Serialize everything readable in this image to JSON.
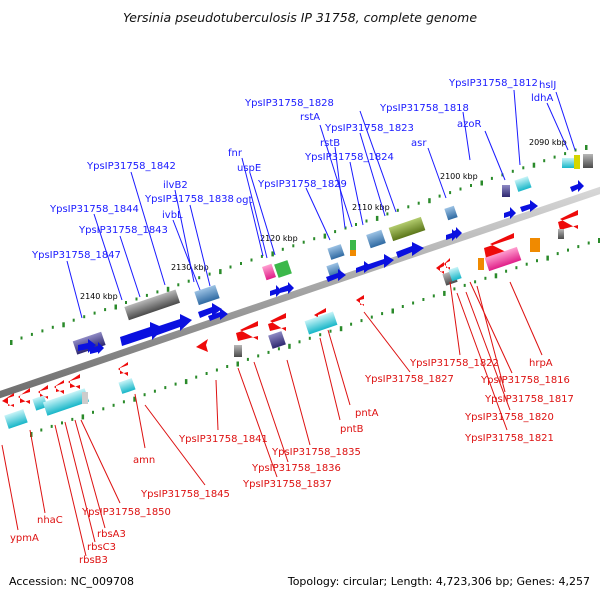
{
  "title": "Yersinia pseudotuberculosis IP 31758, complete genome",
  "footer": {
    "accession": "Accession: NC_009708",
    "topology": "Topology: circular; Length: 4,723,306 bp; Genes: 4,257"
  },
  "colors": {
    "forward_label": "#1a1aff",
    "reverse_label": "#dd1111",
    "backbone": "#8f8f8f",
    "tick": "#2a8a2a"
  },
  "kbp_ticks": [
    "2090 kbp",
    "2100 kbp",
    "2110 kbp",
    "2120 kbp",
    "2130 kbp",
    "2140 kbp"
  ],
  "forward_genes": [
    "YpsIP31758_1812",
    "hslJ",
    "ldhA",
    "YpsIP31758_1818",
    "azoR",
    "asr",
    "YpsIP31758_1828",
    "rstA",
    "rstB",
    "YpsIP31758_1823",
    "YpsIP31758_1824",
    "fnr",
    "uspE",
    "YpsIP31758_1829",
    "ogt",
    "YpsIP31758_1842",
    "ilvB2",
    "YpsIP31758_1838",
    "ivbL",
    "YpsIP31758_1844",
    "YpsIP31758_1843",
    "YpsIP31758_1847"
  ],
  "reverse_genes": [
    "YpsIP31758_1822",
    "hrpA",
    "YpsIP31758_1827",
    "YpsIP31758_1816",
    "YpsIP31758_1817",
    "YpsIP31758_1820",
    "YpsIP31758_1821",
    "pntA",
    "pntB",
    "YpsIP31758_1841",
    "YpsIP31758_1835",
    "YpsIP31758_1836",
    "YpsIP31758_1837",
    "amn",
    "YpsIP31758_1845",
    "YpsIP31758_1850",
    "nhaC",
    "rbsA3",
    "rbsC3",
    "rbsB3",
    "ypmA"
  ]
}
